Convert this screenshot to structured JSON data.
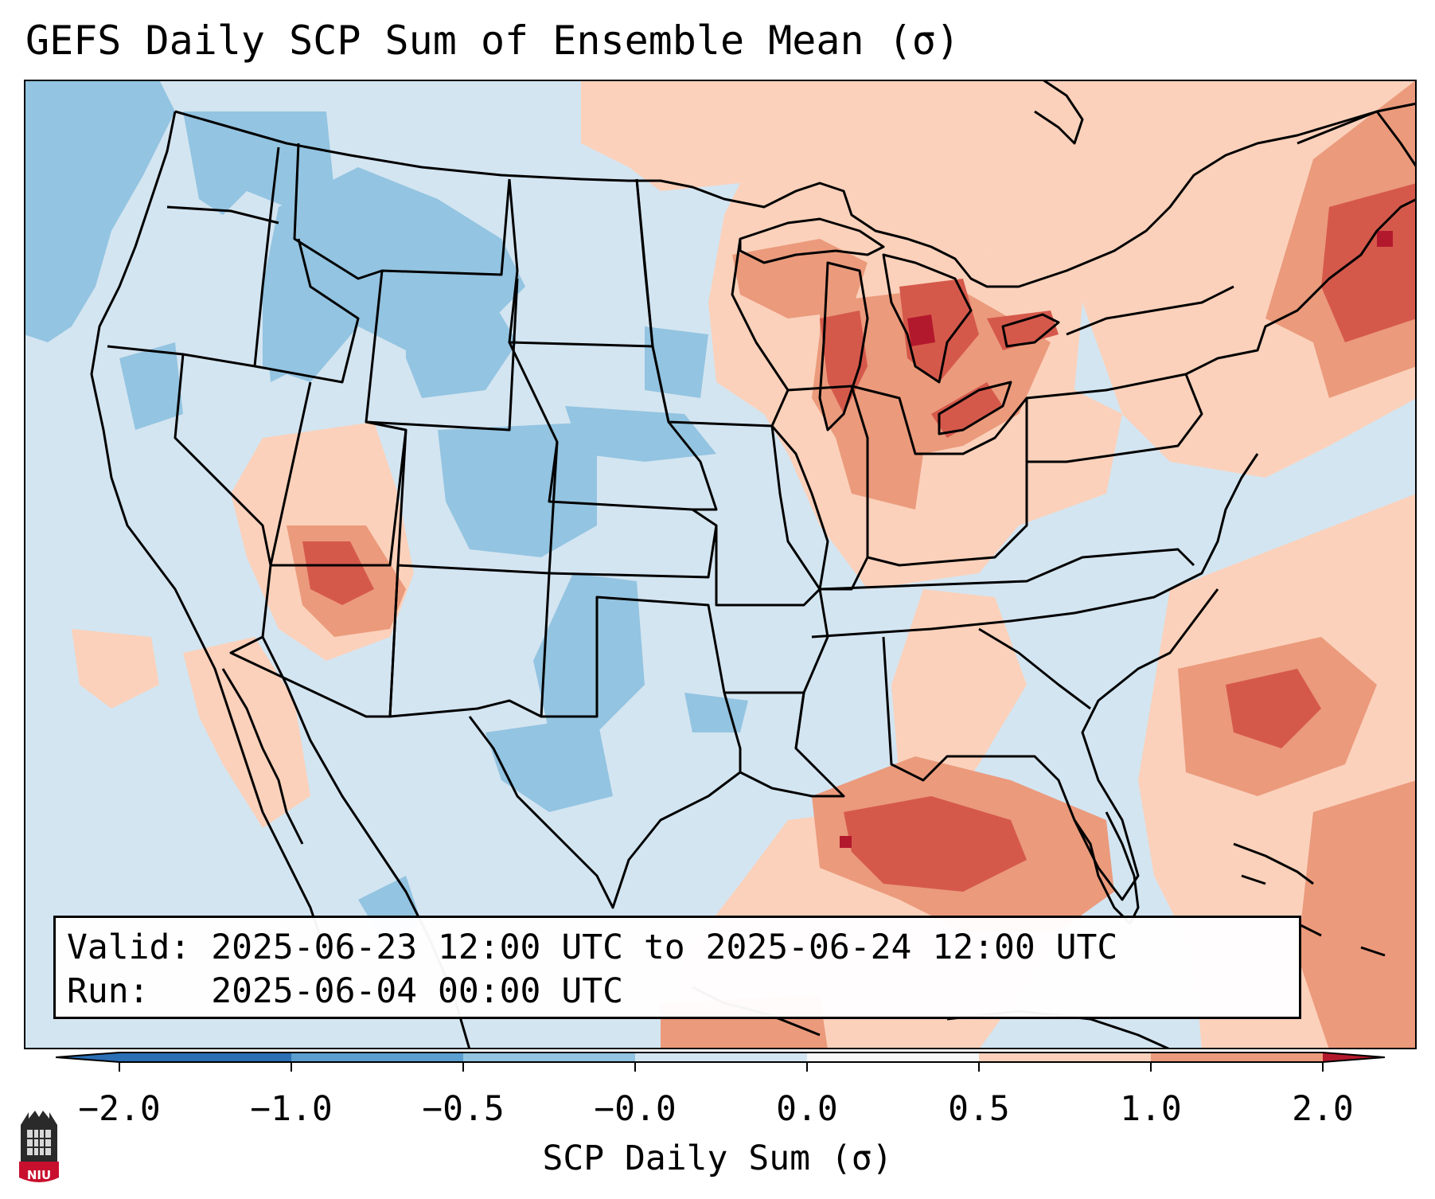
{
  "title": "GEFS Daily SCP Sum of Ensemble Mean (σ)",
  "info": {
    "valid_label": "Valid:",
    "valid_value": "2025-06-23 12:00 UTC to 2025-06-24 12:00 UTC",
    "run_label": "Run:",
    "run_value": "2025-06-04 00:00 UTC"
  },
  "colorbar": {
    "label": "SCP Daily Sum (σ)",
    "ticks": [
      "−2.0",
      "−1.0",
      "−0.5",
      "−0.0",
      "0.0",
      "0.5",
      "1.0",
      "2.0"
    ],
    "colors": [
      "#2b6fb5",
      "#5a9fd0",
      "#93c4e1",
      "#d3e5f1",
      "#f8f8f8",
      "#fbd1bb",
      "#eb9a7c",
      "#d5594b",
      "#b3192c"
    ]
  },
  "logo": {
    "text": "NIU"
  },
  "map": {
    "colors": {
      "neutral_blue": "#d3e5f1",
      "light_blue": "#93c4e1",
      "light_red": "#fbd1bb",
      "medium_red": "#eb9a7c",
      "red": "#d5594b",
      "dark_red": "#b3192c",
      "outline": "#000000"
    }
  }
}
